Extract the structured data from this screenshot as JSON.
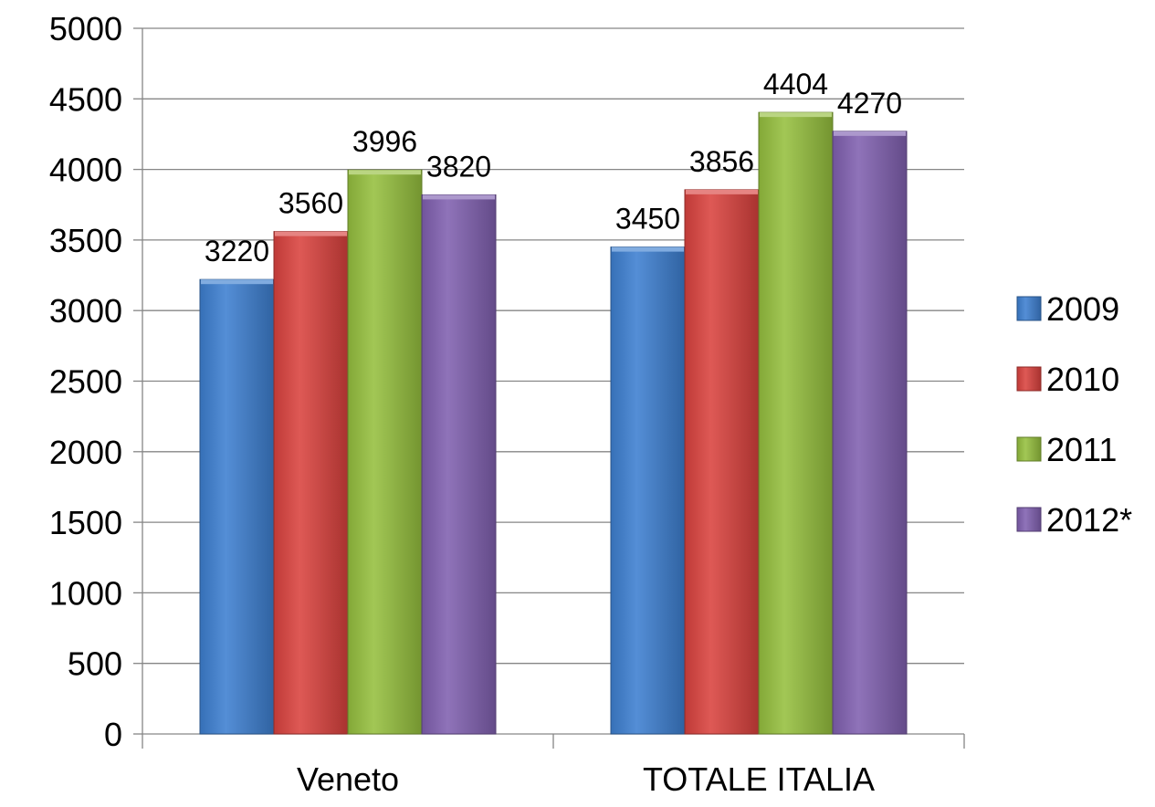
{
  "chart_data": {
    "type": "bar",
    "title": "",
    "xlabel": "",
    "ylabel": "",
    "categories": [
      "Veneto",
      "TOTALE ITALIA"
    ],
    "series": [
      {
        "name": "2009",
        "values": [
          3220,
          3450
        ],
        "color": "#3d7fd0"
      },
      {
        "name": "2010",
        "values": [
          3560,
          3856
        ],
        "color": "#d9423e"
      },
      {
        "name": "2011",
        "values": [
          3996,
          4404
        ],
        "color": "#95bf3e"
      },
      {
        "name": "2012*",
        "values": [
          3820,
          4270
        ],
        "color": "#8060b0"
      }
    ],
    "ylim": [
      0,
      5000
    ],
    "yticks": [
      0,
      500,
      1000,
      1500,
      2000,
      2500,
      3000,
      3500,
      4000,
      4500,
      5000
    ],
    "grid": true,
    "legend": "right",
    "data_labels": true
  }
}
